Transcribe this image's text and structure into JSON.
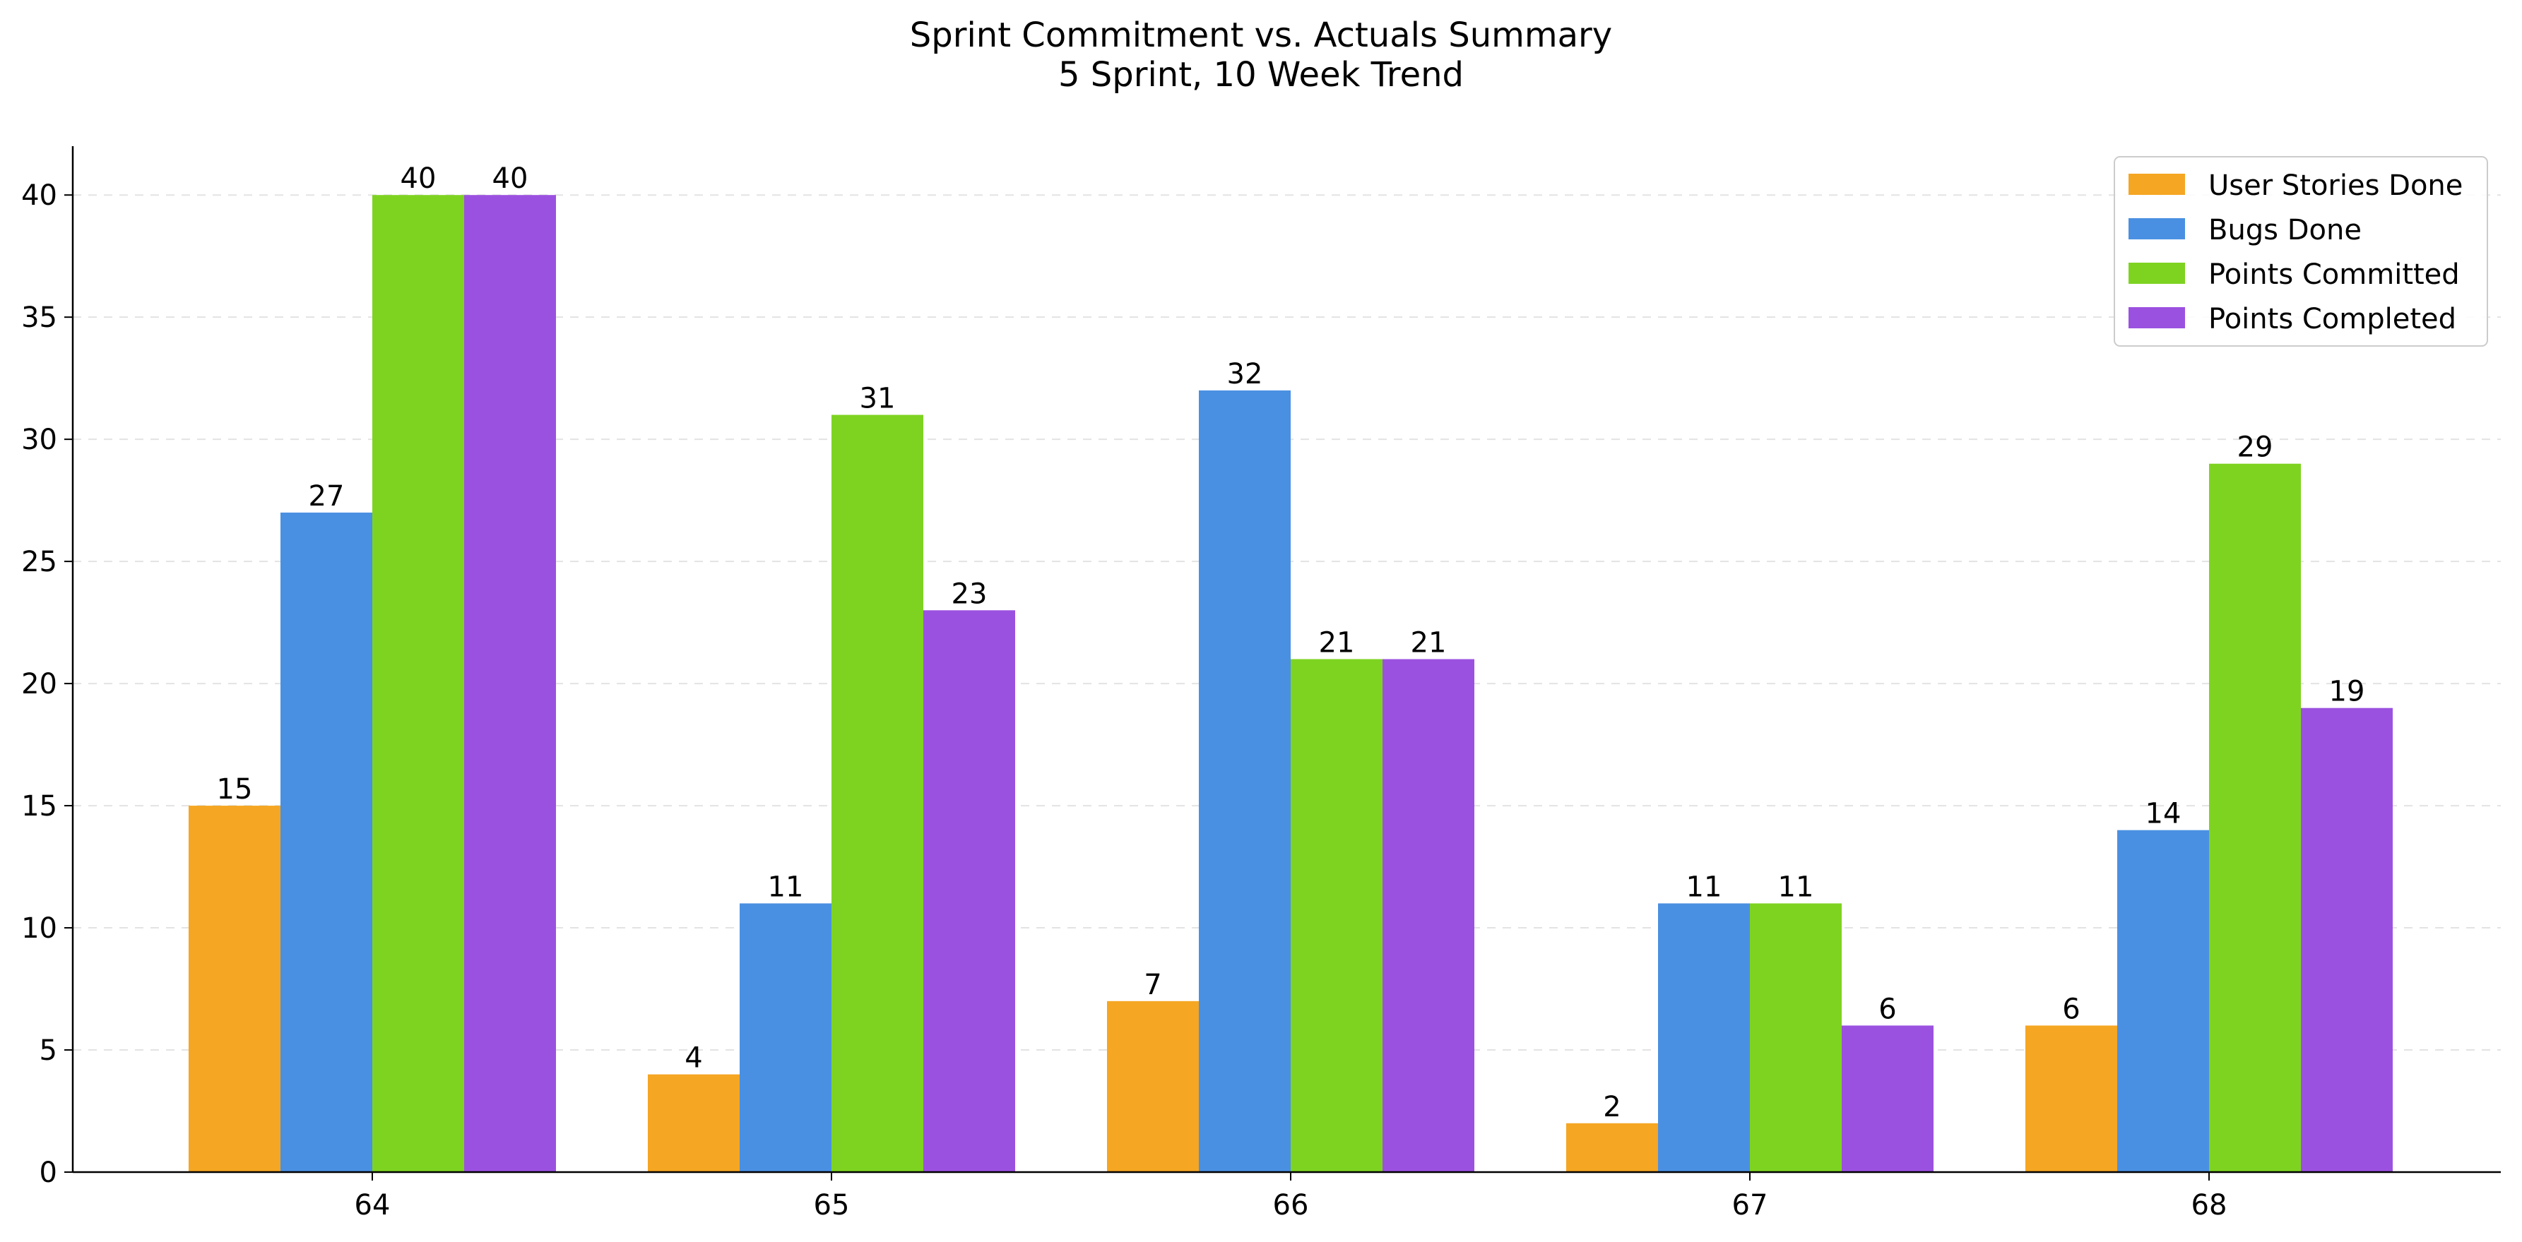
{
  "chart_data": {
    "type": "bar",
    "title_line1": "Sprint Commitment vs. Actuals Summary",
    "title_line2": "5 Sprint, 10 Week Trend",
    "xlabel": "",
    "ylabel": "",
    "categories": [
      "64",
      "65",
      "66",
      "67",
      "68"
    ],
    "ylim": [
      0,
      42
    ],
    "yticks": [
      0,
      5,
      10,
      15,
      20,
      25,
      30,
      35,
      40
    ],
    "grid": "horizontal dashed",
    "legend_position": "top-right",
    "series": [
      {
        "name": "User Stories Done",
        "color": "#F5A623",
        "values": [
          15,
          4,
          7,
          2,
          6
        ]
      },
      {
        "name": "Bugs Done",
        "color": "#4A90E2",
        "values": [
          27,
          11,
          32,
          11,
          14
        ]
      },
      {
        "name": "Points Committed",
        "color": "#7ED321",
        "values": [
          40,
          31,
          21,
          11,
          29
        ]
      },
      {
        "name": "Points Completed",
        "color": "#9B51E0",
        "values": [
          40,
          23,
          21,
          6,
          19
        ]
      }
    ]
  }
}
